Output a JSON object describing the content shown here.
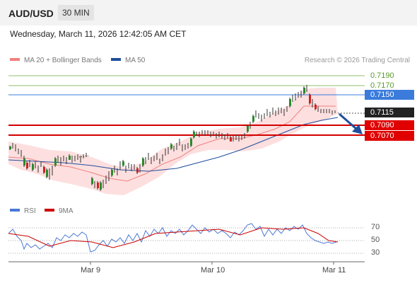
{
  "header": {
    "symbol": "AUD/USD",
    "timeframe": "30 MIN"
  },
  "timestamp": "Wednesday, March 11, 2026 12:42:05 AM CET",
  "legend": {
    "bb_label": "MA 20 + Bollinger Bands",
    "ma50_label": "MA 50",
    "copyright": "Research © 2026 Trading Central"
  },
  "colors": {
    "bb": "#f08080",
    "ma50": "#1f4e9c",
    "resistance_green": "#8dc26f",
    "pivot_blue": "#3a7bdc",
    "support_red": "#d40000",
    "current": "#222222",
    "rsi": "#4a78d4",
    "rsi_ma": "#cc0000"
  },
  "price_levels": [
    {
      "label": "0.7190",
      "type": "resistance"
    },
    {
      "label": "0.7170",
      "type": "resistance"
    },
    {
      "label": "0.7150",
      "type": "pivot"
    },
    {
      "label": "0.7115",
      "type": "current"
    },
    {
      "label": "0.7090",
      "type": "support"
    },
    {
      "label": "0.7070",
      "type": "support"
    }
  ],
  "rsi_panel": {
    "rsi_label": "RSI",
    "ma_label": "9MA",
    "levels": [
      "70",
      "50",
      "30"
    ]
  },
  "x_axis": {
    "labels": [
      "Mar 9",
      "Mar 10",
      "Mar 11"
    ]
  }
}
